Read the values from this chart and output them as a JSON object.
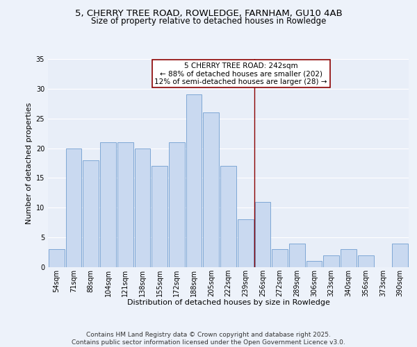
{
  "title_line1": "5, CHERRY TREE ROAD, ROWLEDGE, FARNHAM, GU10 4AB",
  "title_line2": "Size of property relative to detached houses in Rowledge",
  "xlabel": "Distribution of detached houses by size in Rowledge",
  "ylabel": "Number of detached properties",
  "categories": [
    "54sqm",
    "71sqm",
    "88sqm",
    "104sqm",
    "121sqm",
    "138sqm",
    "155sqm",
    "172sqm",
    "188sqm",
    "205sqm",
    "222sqm",
    "239sqm",
    "256sqm",
    "272sqm",
    "289sqm",
    "306sqm",
    "323sqm",
    "340sqm",
    "356sqm",
    "373sqm",
    "390sqm"
  ],
  "values": [
    3,
    20,
    18,
    21,
    21,
    20,
    17,
    21,
    29,
    26,
    17,
    8,
    11,
    3,
    4,
    1,
    2,
    3,
    2,
    0,
    4
  ],
  "bar_color": "#c9d9f0",
  "bar_edge_color": "#5b8fc9",
  "background_color": "#e8eef8",
  "fig_background_color": "#edf2fa",
  "grid_color": "#ffffff",
  "subject_label": "5 CHERRY TREE ROAD: 242sqm",
  "annotation_line1": "← 88% of detached houses are smaller (202)",
  "annotation_line2": "12% of semi-detached houses are larger (28) →",
  "annotation_box_color": "#ffffff",
  "annotation_box_edge": "#8b0000",
  "subject_line_color": "#8b0000",
  "ylim": [
    0,
    35
  ],
  "yticks": [
    0,
    5,
    10,
    15,
    20,
    25,
    30,
    35
  ],
  "footer_line1": "Contains HM Land Registry data © Crown copyright and database right 2025.",
  "footer_line2": "Contains public sector information licensed under the Open Government Licence v3.0.",
  "title_fontsize": 9.5,
  "subtitle_fontsize": 8.5,
  "axis_label_fontsize": 8,
  "tick_fontsize": 7,
  "annotation_fontsize": 7.5,
  "footer_fontsize": 6.5
}
